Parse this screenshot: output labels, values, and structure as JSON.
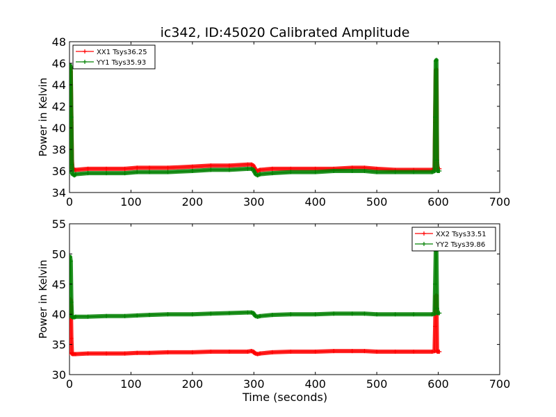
{
  "figure": {
    "title": "ic342, ID:45020 Calibrated Amplitude",
    "xlabel": "Time (seconds)"
  },
  "chart_data": [
    {
      "type": "line",
      "title": "ic342, ID:45020 Calibrated Amplitude",
      "xlabel": "",
      "ylabel": "Power in Kelvin",
      "xlim": [
        0,
        700
      ],
      "ylim": [
        34,
        48
      ],
      "xticks": [
        0,
        100,
        200,
        300,
        400,
        500,
        600,
        700
      ],
      "yticks": [
        34,
        36,
        38,
        40,
        42,
        44,
        46,
        48
      ],
      "grid": false,
      "legend_position": "top-left",
      "series": [
        {
          "name": "XX1 Tsys36.25",
          "color": "#ff0000",
          "x": [
            0,
            1,
            2,
            3,
            4,
            5,
            6,
            8,
            10,
            30,
            60,
            90,
            110,
            130,
            160,
            200,
            230,
            260,
            290,
            296,
            299,
            301,
            303,
            306,
            310,
            330,
            360,
            400,
            430,
            460,
            480,
            500,
            530,
            560,
            590,
            594,
            595,
            596,
            597,
            598,
            599,
            600,
            602
          ],
          "y": [
            36.2,
            45.6,
            45.2,
            40.5,
            37.0,
            36.2,
            36.2,
            36.1,
            36.1,
            36.2,
            36.2,
            36.2,
            36.3,
            36.3,
            36.3,
            36.4,
            36.5,
            36.5,
            36.6,
            36.6,
            36.5,
            36.3,
            36.1,
            36.0,
            36.1,
            36.2,
            36.2,
            36.2,
            36.2,
            36.3,
            36.3,
            36.2,
            36.1,
            36.1,
            36.1,
            36.2,
            40.5,
            45.3,
            45.4,
            36.8,
            36.2,
            36.2,
            36.2
          ]
        },
        {
          "name": "YY1 Tsys35.93",
          "color": "#008000",
          "x": [
            0,
            1,
            2,
            3,
            4,
            5,
            6,
            8,
            10,
            30,
            60,
            90,
            110,
            130,
            160,
            200,
            230,
            260,
            290,
            296,
            299,
            301,
            303,
            306,
            310,
            330,
            360,
            400,
            430,
            460,
            480,
            500,
            530,
            560,
            590,
            594,
            595,
            596,
            597,
            598,
            599,
            600,
            602
          ],
          "y": [
            35.8,
            45.8,
            45.6,
            41.0,
            36.6,
            35.7,
            35.7,
            35.6,
            35.7,
            35.8,
            35.8,
            35.8,
            35.9,
            35.9,
            35.9,
            36.0,
            36.1,
            36.1,
            36.2,
            36.2,
            36.1,
            35.9,
            35.7,
            35.6,
            35.7,
            35.8,
            35.9,
            35.9,
            36.0,
            36.0,
            36.0,
            35.9,
            35.9,
            35.9,
            35.9,
            36.0,
            41.0,
            46.2,
            46.3,
            37.0,
            36.0,
            36.0,
            36.0
          ]
        }
      ]
    },
    {
      "type": "line",
      "title": "",
      "xlabel": "Time (seconds)",
      "ylabel": "Power in Kelvin",
      "xlim": [
        0,
        700
      ],
      "ylim": [
        30,
        55
      ],
      "xticks": [
        0,
        100,
        200,
        300,
        400,
        500,
        600,
        700
      ],
      "yticks": [
        30,
        35,
        40,
        45,
        50,
        55
      ],
      "grid": false,
      "legend_position": "top-right",
      "series": [
        {
          "name": "XX2 Tsys33.51",
          "color": "#ff0000",
          "x": [
            0,
            1,
            2,
            3,
            4,
            5,
            6,
            8,
            10,
            30,
            60,
            90,
            110,
            130,
            160,
            200,
            230,
            260,
            290,
            296,
            299,
            301,
            303,
            306,
            310,
            330,
            360,
            400,
            430,
            460,
            480,
            500,
            530,
            560,
            590,
            594,
            595,
            596,
            597,
            598,
            599,
            600,
            602
          ],
          "y": [
            33.5,
            42.5,
            42.3,
            36.0,
            33.6,
            33.4,
            33.4,
            33.4,
            33.4,
            33.5,
            33.5,
            33.5,
            33.6,
            33.6,
            33.7,
            33.7,
            33.8,
            33.8,
            33.8,
            33.9,
            33.8,
            33.6,
            33.5,
            33.4,
            33.5,
            33.7,
            33.8,
            33.8,
            33.9,
            33.9,
            33.9,
            33.8,
            33.8,
            33.8,
            33.8,
            33.9,
            38.0,
            43.0,
            43.1,
            34.0,
            33.8,
            33.8,
            33.8
          ]
        },
        {
          "name": "YY2 Tsys39.86",
          "color": "#008000",
          "x": [
            0,
            1,
            2,
            3,
            4,
            5,
            6,
            8,
            10,
            30,
            60,
            90,
            110,
            130,
            160,
            200,
            230,
            260,
            290,
            296,
            299,
            301,
            303,
            306,
            310,
            330,
            360,
            400,
            430,
            460,
            480,
            500,
            530,
            560,
            590,
            594,
            595,
            596,
            597,
            598,
            599,
            600,
            602
          ],
          "y": [
            39.6,
            49.5,
            48.8,
            42.0,
            39.7,
            39.5,
            39.5,
            39.5,
            39.6,
            39.6,
            39.7,
            39.7,
            39.8,
            39.9,
            40.0,
            40.0,
            40.1,
            40.2,
            40.3,
            40.3,
            40.2,
            39.9,
            39.7,
            39.6,
            39.7,
            39.9,
            40.0,
            40.0,
            40.1,
            40.1,
            40.1,
            40.0,
            40.0,
            40.0,
            40.0,
            40.1,
            45.0,
            50.5,
            50.6,
            41.0,
            40.2,
            40.2,
            40.2
          ]
        }
      ]
    }
  ]
}
